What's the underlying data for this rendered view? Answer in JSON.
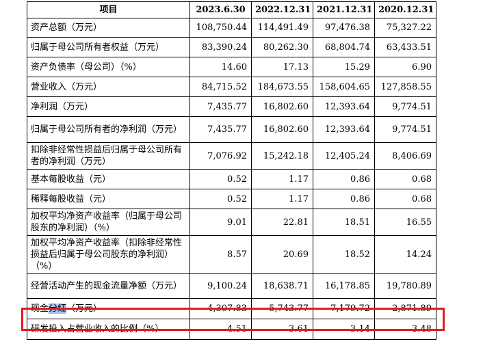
{
  "table": {
    "headers": [
      "项目",
      "2023.6.30",
      "2022.12.31",
      "2021.12.31",
      "2020.12.31"
    ],
    "rows": [
      {
        "label": "资产总额（万元）",
        "values": [
          "108,750.44",
          "114,491.49",
          "97,476.38",
          "75,327.22"
        ]
      },
      {
        "label": "归属于母公司所有者权益（万元）",
        "values": [
          "83,390.24",
          "80,262.30",
          "68,804.74",
          "63,433.51"
        ]
      },
      {
        "label": "资产负债率（母公司）（%）",
        "values": [
          "14.60",
          "17.13",
          "15.29",
          "6.90"
        ]
      },
      {
        "label": "营业收入（万元）",
        "values": [
          "84,715.52",
          "184,673.55",
          "158,604.65",
          "127,858.55"
        ]
      },
      {
        "label": "净利润（万元）",
        "values": [
          "7,435.77",
          "16,802.60",
          "12,393.64",
          "9,774.51"
        ]
      },
      {
        "label": "归属于母公司所有者的净利润（万元）",
        "values": [
          "7,435.77",
          "16,802.60",
          "12,393.64",
          "9,774.51"
        ]
      },
      {
        "label": "扣除非经常性损益后归属于母公司所有者的净利润（万元）",
        "values": [
          "7,076.92",
          "15,242.18",
          "12,405.24",
          "8,406.69"
        ]
      },
      {
        "label": "基本每股收益（元）",
        "values": [
          "0.52",
          "1.17",
          "0.86",
          "0.68"
        ]
      },
      {
        "label": "稀释每股收益（元）",
        "values": [
          "0.52",
          "1.17",
          "0.86",
          "0.68"
        ]
      },
      {
        "label": "加权平均净资产收益率（归属于母公司股东的净利润）（%）",
        "values": [
          "9.01",
          "22.81",
          "18.51",
          "16.55"
        ]
      },
      {
        "label": "加权平均净资产收益率（扣除非经常性损益后归属于母公司股东的净利润）（%）",
        "values": [
          "8.57",
          "20.69",
          "18.52",
          "14.24"
        ]
      },
      {
        "label": "经营活动产生的现金流量净额（万元）",
        "values": [
          "9,100.24",
          "18,638.71",
          "16,178.85",
          "19,780.89"
        ]
      },
      {
        "label_parts": [
          "现金",
          "分红",
          "（万元）"
        ],
        "values": [
          "4,307.83",
          "5,743.77",
          "7,179.72",
          "2,871.89"
        ],
        "highlighted": true
      },
      {
        "label": "研发投入占营业收入的比例（%）",
        "values": [
          "4.51",
          "3.61",
          "3.14",
          "3.48"
        ]
      }
    ]
  },
  "colors": {
    "highlight_box": "#e01b1b",
    "text_selection": "#9ec3f2"
  }
}
